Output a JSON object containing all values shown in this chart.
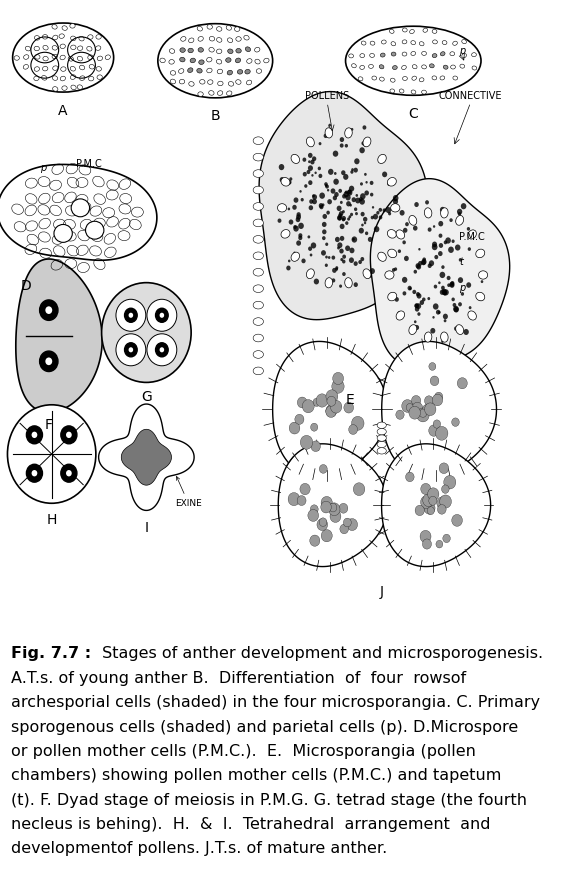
{
  "fig_width": 5.74,
  "fig_height": 8.76,
  "dpi": 100,
  "bg_color": "#ffffff",
  "caption_bold": "Fig. 7.7 :",
  "caption_rest": " Stages of anther development and microsporogenesis.",
  "caption_lines": [
    "A.T.s. of young anther B.  Differentiation  of  four  rowsof",
    "archesporial cells (shaded) in the four microsporangia. C. Primary",
    "sporogenous cells (shaded) and parietal cells (p). D.Microspore",
    "or pollen mother cells (P.M.C.).  E.  Microsporangia (pollen",
    "chambers) showing pollen mother cells (P.M.C.) and tapetum",
    "(t). F. Dyad stage of meiosis in P.M.G. G. tetrad stage (the fourth",
    "necleus is behing).  H.  &  I.  Tetrahedral  arrangement  and",
    "developmentof pollens. J.T.s. of mature anther."
  ],
  "caption_fontsize": 11.5
}
